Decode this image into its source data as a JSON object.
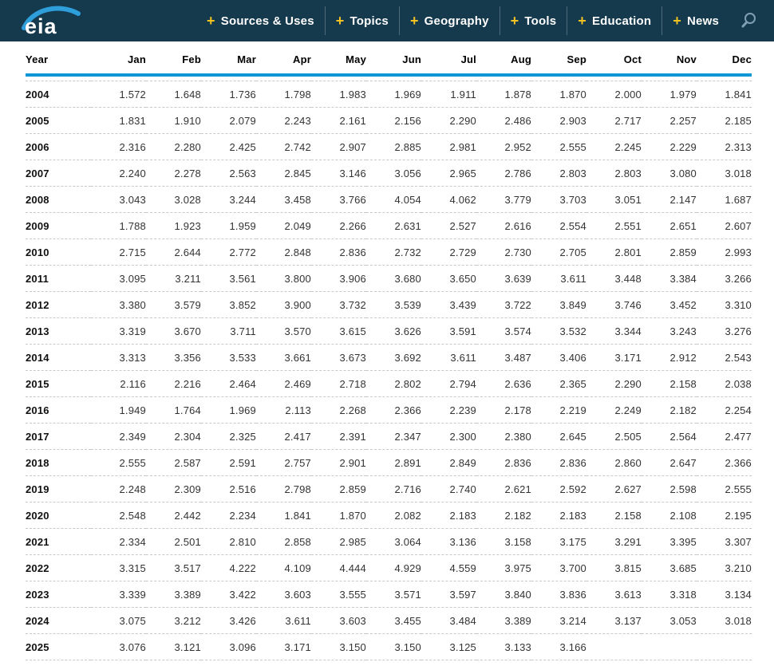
{
  "header": {
    "logo": "eia",
    "plus_glyph": "+",
    "nav": [
      {
        "label": "Sources & Uses"
      },
      {
        "label": "Topics"
      },
      {
        "label": "Geography"
      },
      {
        "label": "Tools"
      },
      {
        "label": "Education"
      },
      {
        "label": "News"
      }
    ]
  },
  "colors": {
    "header_bg": "#15394D",
    "accent_yellow": "#F2C321",
    "rule_blue": "#0D96D6",
    "swoosh_blue": "#2E9FDB",
    "search_icon": "#7FA0B2",
    "nav_divider": "#4F6B7A",
    "dashed_line": "#C9C9C9",
    "value_text": "#333333",
    "year_text": "#111111"
  },
  "table": {
    "columns": [
      "Year",
      "Jan",
      "Feb",
      "Mar",
      "Apr",
      "May",
      "Jun",
      "Jul",
      "Aug",
      "Sep",
      "Oct",
      "Nov",
      "Dec"
    ],
    "rows": [
      {
        "year": "2004",
        "values": [
          "1.572",
          "1.648",
          "1.736",
          "1.798",
          "1.983",
          "1.969",
          "1.911",
          "1.878",
          "1.870",
          "2.000",
          "1.979",
          "1.841"
        ]
      },
      {
        "year": "2005",
        "values": [
          "1.831",
          "1.910",
          "2.079",
          "2.243",
          "2.161",
          "2.156",
          "2.290",
          "2.486",
          "2.903",
          "2.717",
          "2.257",
          "2.185"
        ]
      },
      {
        "year": "2006",
        "values": [
          "2.316",
          "2.280",
          "2.425",
          "2.742",
          "2.907",
          "2.885",
          "2.981",
          "2.952",
          "2.555",
          "2.245",
          "2.229",
          "2.313"
        ]
      },
      {
        "year": "2007",
        "values": [
          "2.240",
          "2.278",
          "2.563",
          "2.845",
          "3.146",
          "3.056",
          "2.965",
          "2.786",
          "2.803",
          "2.803",
          "3.080",
          "3.018"
        ]
      },
      {
        "year": "2008",
        "values": [
          "3.043",
          "3.028",
          "3.244",
          "3.458",
          "3.766",
          "4.054",
          "4.062",
          "3.779",
          "3.703",
          "3.051",
          "2.147",
          "1.687"
        ]
      },
      {
        "year": "2009",
        "values": [
          "1.788",
          "1.923",
          "1.959",
          "2.049",
          "2.266",
          "2.631",
          "2.527",
          "2.616",
          "2.554",
          "2.551",
          "2.651",
          "2.607"
        ]
      },
      {
        "year": "2010",
        "values": [
          "2.715",
          "2.644",
          "2.772",
          "2.848",
          "2.836",
          "2.732",
          "2.729",
          "2.730",
          "2.705",
          "2.801",
          "2.859",
          "2.993"
        ]
      },
      {
        "year": "2011",
        "values": [
          "3.095",
          "3.211",
          "3.561",
          "3.800",
          "3.906",
          "3.680",
          "3.650",
          "3.639",
          "3.611",
          "3.448",
          "3.384",
          "3.266"
        ]
      },
      {
        "year": "2012",
        "values": [
          "3.380",
          "3.579",
          "3.852",
          "3.900",
          "3.732",
          "3.539",
          "3.439",
          "3.722",
          "3.849",
          "3.746",
          "3.452",
          "3.310"
        ]
      },
      {
        "year": "2013",
        "values": [
          "3.319",
          "3.670",
          "3.711",
          "3.570",
          "3.615",
          "3.626",
          "3.591",
          "3.574",
          "3.532",
          "3.344",
          "3.243",
          "3.276"
        ]
      },
      {
        "year": "2014",
        "values": [
          "3.313",
          "3.356",
          "3.533",
          "3.661",
          "3.673",
          "3.692",
          "3.611",
          "3.487",
          "3.406",
          "3.171",
          "2.912",
          "2.543"
        ]
      },
      {
        "year": "2015",
        "values": [
          "2.116",
          "2.216",
          "2.464",
          "2.469",
          "2.718",
          "2.802",
          "2.794",
          "2.636",
          "2.365",
          "2.290",
          "2.158",
          "2.038"
        ]
      },
      {
        "year": "2016",
        "values": [
          "1.949",
          "1.764",
          "1.969",
          "2.113",
          "2.268",
          "2.366",
          "2.239",
          "2.178",
          "2.219",
          "2.249",
          "2.182",
          "2.254"
        ]
      },
      {
        "year": "2017",
        "values": [
          "2.349",
          "2.304",
          "2.325",
          "2.417",
          "2.391",
          "2.347",
          "2.300",
          "2.380",
          "2.645",
          "2.505",
          "2.564",
          "2.477"
        ]
      },
      {
        "year": "2018",
        "values": [
          "2.555",
          "2.587",
          "2.591",
          "2.757",
          "2.901",
          "2.891",
          "2.849",
          "2.836",
          "2.836",
          "2.860",
          "2.647",
          "2.366"
        ]
      },
      {
        "year": "2019",
        "values": [
          "2.248",
          "2.309",
          "2.516",
          "2.798",
          "2.859",
          "2.716",
          "2.740",
          "2.621",
          "2.592",
          "2.627",
          "2.598",
          "2.555"
        ]
      },
      {
        "year": "2020",
        "values": [
          "2.548",
          "2.442",
          "2.234",
          "1.841",
          "1.870",
          "2.082",
          "2.183",
          "2.182",
          "2.183",
          "2.158",
          "2.108",
          "2.195"
        ]
      },
      {
        "year": "2021",
        "values": [
          "2.334",
          "2.501",
          "2.810",
          "2.858",
          "2.985",
          "3.064",
          "3.136",
          "3.158",
          "3.175",
          "3.291",
          "3.395",
          "3.307"
        ]
      },
      {
        "year": "2022",
        "values": [
          "3.315",
          "3.517",
          "4.222",
          "4.109",
          "4.444",
          "4.929",
          "4.559",
          "3.975",
          "3.700",
          "3.815",
          "3.685",
          "3.210"
        ]
      },
      {
        "year": "2023",
        "values": [
          "3.339",
          "3.389",
          "3.422",
          "3.603",
          "3.555",
          "3.571",
          "3.597",
          "3.840",
          "3.836",
          "3.613",
          "3.318",
          "3.134"
        ]
      },
      {
        "year": "2024",
        "values": [
          "3.075",
          "3.212",
          "3.426",
          "3.611",
          "3.603",
          "3.455",
          "3.484",
          "3.389",
          "3.214",
          "3.137",
          "3.053",
          "3.018"
        ]
      },
      {
        "year": "2025",
        "values": [
          "3.076",
          "3.121",
          "3.096",
          "3.171",
          "3.150",
          "3.150",
          "3.125",
          "3.133",
          "3.166",
          "",
          "",
          ""
        ]
      }
    ]
  }
}
